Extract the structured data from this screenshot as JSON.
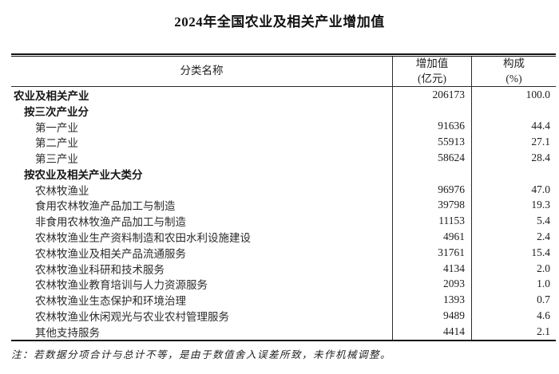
{
  "title": "2024年全国农业及相关产业增加值",
  "table": {
    "header": {
      "name_col": "分类名称",
      "value_col_line1": "增加值",
      "value_col_line2": "(亿元)",
      "share_col_line1": "构成",
      "share_col_line2": "(%)"
    },
    "rows": [
      {
        "name": "农业及相关产业",
        "value": "206173",
        "share": "100.0",
        "bold": true,
        "indent": 0
      },
      {
        "name": "按三次产业分",
        "value": "",
        "share": "",
        "bold": true,
        "indent": 1
      },
      {
        "name": "第一产业",
        "value": "91636",
        "share": "44.4",
        "bold": false,
        "indent": 2
      },
      {
        "name": "第二产业",
        "value": "55913",
        "share": "27.1",
        "bold": false,
        "indent": 2
      },
      {
        "name": "第三产业",
        "value": "58624",
        "share": "28.4",
        "bold": false,
        "indent": 2
      },
      {
        "name": "按农业及相关产业大类分",
        "value": "",
        "share": "",
        "bold": true,
        "indent": 1
      },
      {
        "name": "农林牧渔业",
        "value": "96976",
        "share": "47.0",
        "bold": false,
        "indent": 2
      },
      {
        "name": "食用农林牧渔产品加工与制造",
        "value": "39798",
        "share": "19.3",
        "bold": false,
        "indent": 2
      },
      {
        "name": "非食用农林牧渔产品加工与制造",
        "value": "11153",
        "share": "5.4",
        "bold": false,
        "indent": 2
      },
      {
        "name": "农林牧渔业生产资料制造和农田水利设施建设",
        "value": "4961",
        "share": "2.4",
        "bold": false,
        "indent": 2
      },
      {
        "name": "农林牧渔业及相关产品流通服务",
        "value": "31761",
        "share": "15.4",
        "bold": false,
        "indent": 2
      },
      {
        "name": "农林牧渔业科研和技术服务",
        "value": "4134",
        "share": "2.0",
        "bold": false,
        "indent": 2
      },
      {
        "name": "农林牧渔业教育培训与人力资源服务",
        "value": "2093",
        "share": "1.0",
        "bold": false,
        "indent": 2
      },
      {
        "name": "农林牧渔业生态保护和环境治理",
        "value": "1393",
        "share": "0.7",
        "bold": false,
        "indent": 2
      },
      {
        "name": "农林牧渔业休闲观光与农业农村管理服务",
        "value": "9489",
        "share": "4.6",
        "bold": false,
        "indent": 2
      },
      {
        "name": "其他支持服务",
        "value": "4414",
        "share": "2.1",
        "bold": false,
        "indent": 2
      }
    ]
  },
  "note": "注：若数据分项合计与总计不等，是由于数值舍入误差所致，未作机械调整。"
}
